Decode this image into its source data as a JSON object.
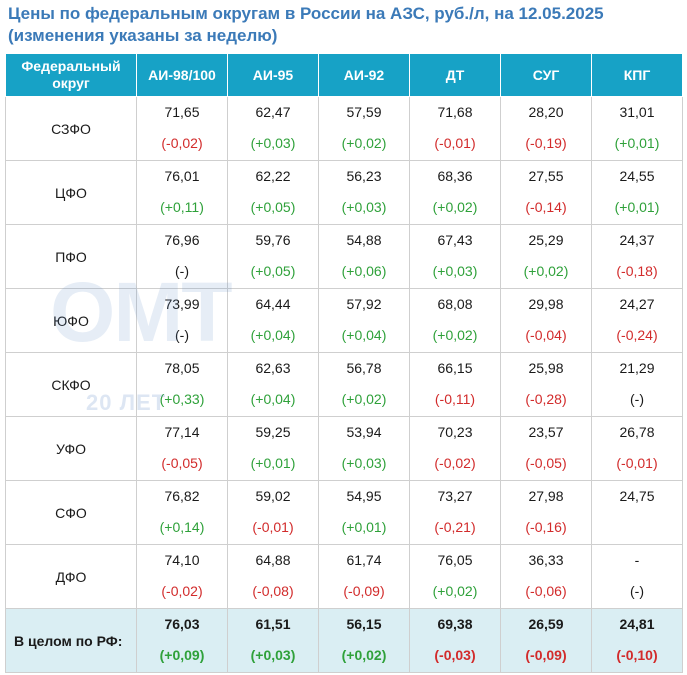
{
  "title": "Цены по федеральным округам в России на АЗС, руб./л, на 12.05.2025 (изменения указаны за неделю)",
  "watermark": {
    "logo": "ОМТ",
    "subtitle": "20 ЛЕТ"
  },
  "colors": {
    "header_bg": "#17a2c6",
    "title": "#3b7ab8",
    "positive": "#2fa13a",
    "negative": "#d22b2b",
    "total_bg": "#daeef3"
  },
  "headers": [
    "Федеральный округ",
    "АИ-98/100",
    "АИ-95",
    "АИ-92",
    "ДТ",
    "СУГ",
    "КПГ"
  ],
  "rows": [
    {
      "region": "СЗФО",
      "cells": [
        {
          "price": "71,65",
          "change": "(-0,02)",
          "dir": "neg"
        },
        {
          "price": "62,47",
          "change": "(+0,03)",
          "dir": "pos"
        },
        {
          "price": "57,59",
          "change": "(+0,02)",
          "dir": "pos"
        },
        {
          "price": "71,68",
          "change": "(-0,01)",
          "dir": "neg"
        },
        {
          "price": "28,20",
          "change": "(-0,19)",
          "dir": "neg"
        },
        {
          "price": "31,01",
          "change": "(+0,01)",
          "dir": "pos"
        }
      ]
    },
    {
      "region": "ЦФО",
      "cells": [
        {
          "price": "76,01",
          "change": "(+0,11)",
          "dir": "pos"
        },
        {
          "price": "62,22",
          "change": "(+0,05)",
          "dir": "pos"
        },
        {
          "price": "56,23",
          "change": "(+0,03)",
          "dir": "pos"
        },
        {
          "price": "68,36",
          "change": "(+0,02)",
          "dir": "pos"
        },
        {
          "price": "27,55",
          "change": "(-0,14)",
          "dir": "neg"
        },
        {
          "price": "24,55",
          "change": "(+0,01)",
          "dir": "pos"
        }
      ]
    },
    {
      "region": "ПФО",
      "cells": [
        {
          "price": "76,96",
          "change": "(-)",
          "dir": "neu"
        },
        {
          "price": "59,76",
          "change": "(+0,05)",
          "dir": "pos"
        },
        {
          "price": "54,88",
          "change": "(+0,06)",
          "dir": "pos"
        },
        {
          "price": "67,43",
          "change": "(+0,03)",
          "dir": "pos"
        },
        {
          "price": "25,29",
          "change": "(+0,02)",
          "dir": "pos"
        },
        {
          "price": "24,37",
          "change": "(-0,18)",
          "dir": "neg"
        }
      ]
    },
    {
      "region": "ЮФО",
      "cells": [
        {
          "price": "73,99",
          "change": "(-)",
          "dir": "neu"
        },
        {
          "price": "64,44",
          "change": "(+0,04)",
          "dir": "pos"
        },
        {
          "price": "57,92",
          "change": "(+0,04)",
          "dir": "pos"
        },
        {
          "price": "68,08",
          "change": "(+0,02)",
          "dir": "pos"
        },
        {
          "price": "29,98",
          "change": "(-0,04)",
          "dir": "neg"
        },
        {
          "price": "24,27",
          "change": "(-0,24)",
          "dir": "neg"
        }
      ]
    },
    {
      "region": "СКФО",
      "cells": [
        {
          "price": "78,05",
          "change": "(+0,33)",
          "dir": "pos"
        },
        {
          "price": "62,63",
          "change": "(+0,04)",
          "dir": "pos"
        },
        {
          "price": "56,78",
          "change": "(+0,02)",
          "dir": "pos"
        },
        {
          "price": "66,15",
          "change": "(-0,11)",
          "dir": "neg"
        },
        {
          "price": "25,98",
          "change": "(-0,28)",
          "dir": "neg"
        },
        {
          "price": "21,29",
          "change": "(-)",
          "dir": "neu"
        }
      ]
    },
    {
      "region": "УФО",
      "cells": [
        {
          "price": "77,14",
          "change": "(-0,05)",
          "dir": "neg"
        },
        {
          "price": "59,25",
          "change": "(+0,01)",
          "dir": "pos"
        },
        {
          "price": "53,94",
          "change": "(+0,03)",
          "dir": "pos"
        },
        {
          "price": "70,23",
          "change": "(-0,02)",
          "dir": "neg"
        },
        {
          "price": "23,57",
          "change": "(-0,05)",
          "dir": "neg"
        },
        {
          "price": "26,78",
          "change": "(-0,01)",
          "dir": "neg"
        }
      ]
    },
    {
      "region": "СФО",
      "cells": [
        {
          "price": "76,82",
          "change": "(+0,14)",
          "dir": "pos"
        },
        {
          "price": "59,02",
          "change": "(-0,01)",
          "dir": "neg"
        },
        {
          "price": "54,95",
          "change": "(+0,01)",
          "dir": "pos"
        },
        {
          "price": "73,27",
          "change": "(-0,21)",
          "dir": "neg"
        },
        {
          "price": "27,98",
          "change": "(-0,16)",
          "dir": "neg"
        },
        {
          "price": "24,75",
          "change": "",
          "dir": "neu"
        }
      ]
    },
    {
      "region": "ДФО",
      "cells": [
        {
          "price": "74,10",
          "change": "(-0,02)",
          "dir": "neg"
        },
        {
          "price": "64,88",
          "change": "(-0,08)",
          "dir": "neg"
        },
        {
          "price": "61,74",
          "change": "(-0,09)",
          "dir": "neg"
        },
        {
          "price": "76,05",
          "change": "(+0,02)",
          "dir": "pos"
        },
        {
          "price": "36,33",
          "change": "(-0,06)",
          "dir": "neg"
        },
        {
          "price": "-",
          "change": "(-)",
          "dir": "neu"
        }
      ]
    }
  ],
  "total": {
    "region": "В целом по РФ:",
    "cells": [
      {
        "price": "76,03",
        "change": "(+0,09)",
        "dir": "pos"
      },
      {
        "price": "61,51",
        "change": "(+0,03)",
        "dir": "pos"
      },
      {
        "price": "56,15",
        "change": "(+0,02)",
        "dir": "pos"
      },
      {
        "price": "69,38",
        "change": "(-0,03)",
        "dir": "neg"
      },
      {
        "price": "26,59",
        "change": "(-0,09)",
        "dir": "neg"
      },
      {
        "price": "24,81",
        "change": "(-0,10)",
        "dir": "neg"
      }
    ]
  }
}
